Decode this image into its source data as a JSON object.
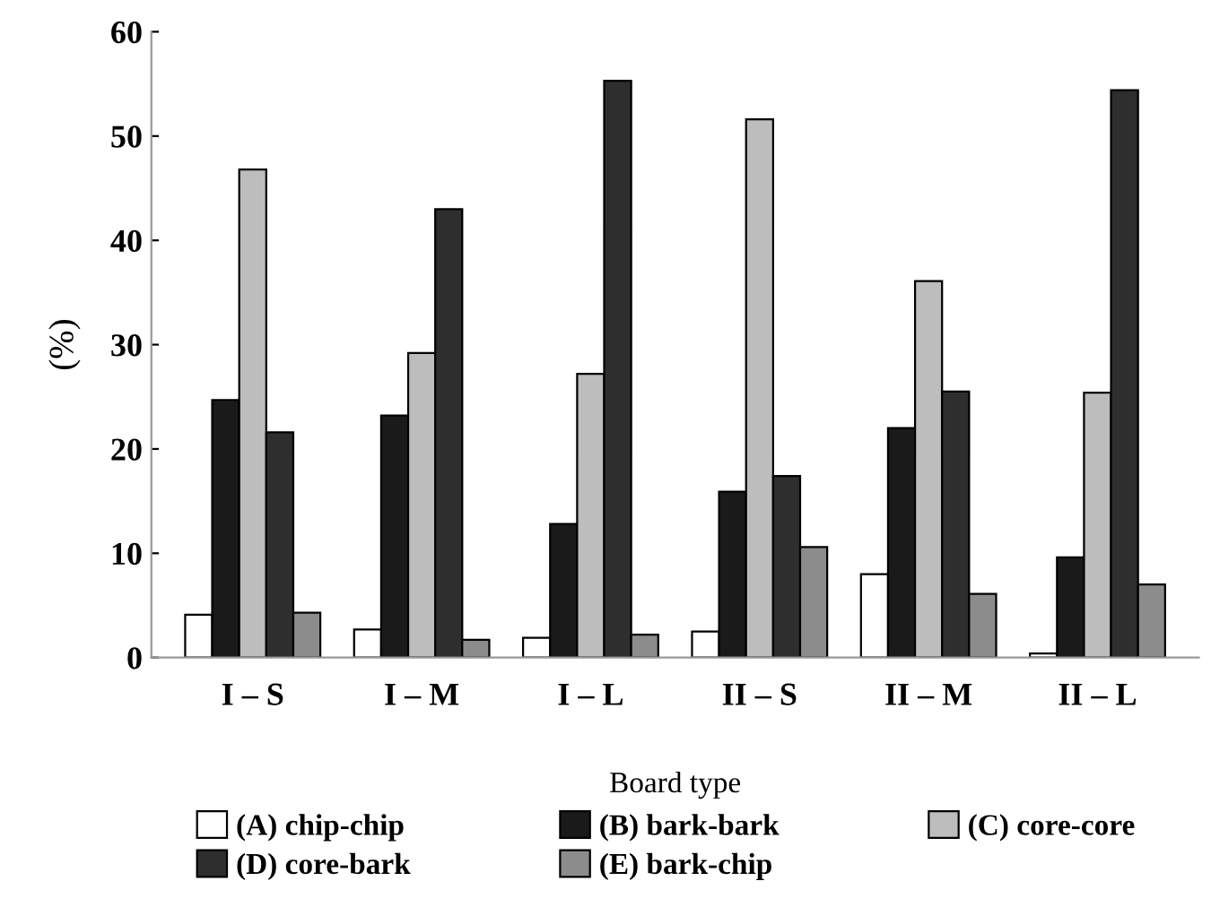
{
  "chart_data": {
    "type": "bar",
    "xlabel": "Board type",
    "ylabel": "(%)",
    "categories": [
      "I – S",
      "I – M",
      "I – L",
      "II – S",
      "II – M",
      "II – L"
    ],
    "series": [
      {
        "name": "(A) chip-chip",
        "color": "#ffffff",
        "values": [
          4.1,
          2.7,
          1.9,
          2.5,
          8.0,
          0.4
        ]
      },
      {
        "name": "(B) bark-bark",
        "color": "#1a1a1a",
        "values": [
          24.7,
          23.2,
          12.8,
          15.9,
          22.0,
          9.6
        ]
      },
      {
        "name": "(C) core-core",
        "color": "#bdbdbd",
        "values": [
          46.8,
          29.2,
          27.2,
          51.6,
          36.1,
          25.4
        ]
      },
      {
        "name": "(D) core-bark",
        "color": "#2e2e2e",
        "values": [
          21.6,
          43.0,
          55.3,
          17.4,
          25.5,
          54.4
        ]
      },
      {
        "name": "(E) bark-chip",
        "color": "#8c8c8c",
        "values": [
          4.3,
          1.7,
          2.2,
          10.6,
          6.1,
          7.0
        ]
      }
    ],
    "ylim": [
      0,
      60
    ],
    "yticks": [
      0,
      10,
      20,
      30,
      40,
      50,
      60
    ],
    "grid": false,
    "legend": "bottom"
  }
}
